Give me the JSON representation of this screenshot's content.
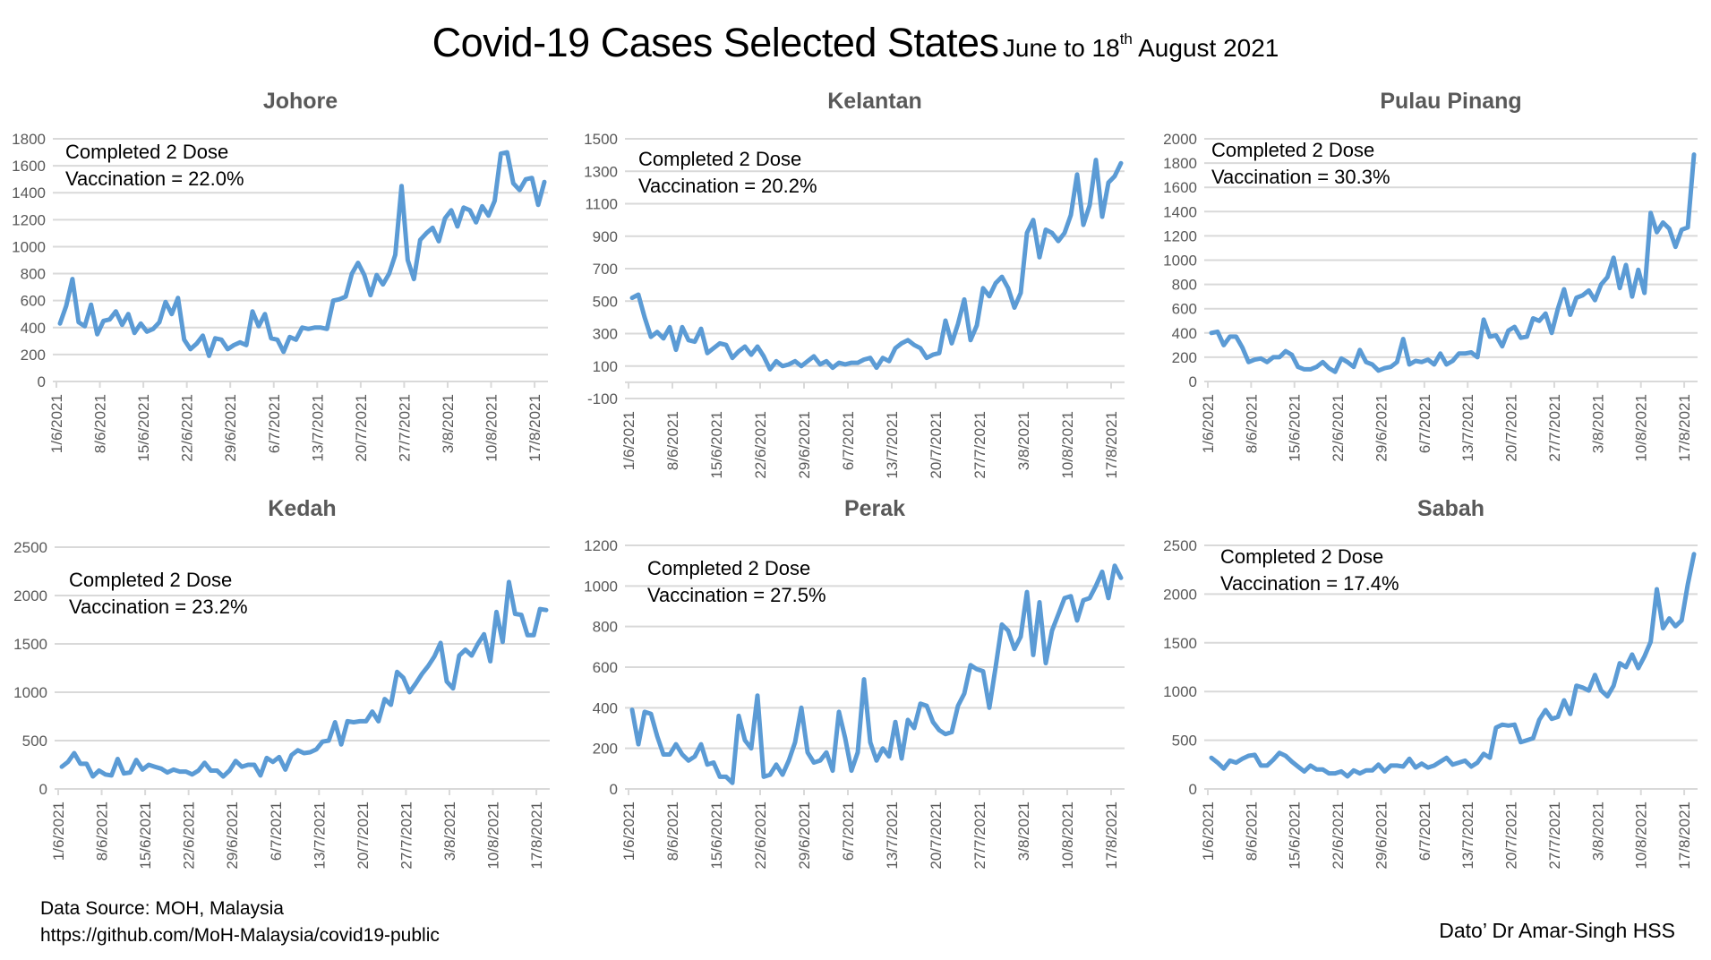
{
  "title": {
    "main": "Covid-19 Cases Selected States",
    "sub_prefix": "June to 18",
    "sub_sup": "th",
    "sub_suffix": " August 2021"
  },
  "footer": {
    "source_line1": "Data Source: MOH, Malaysia",
    "source_line2": "https://github.com/MoH-Malaysia/covid19-public",
    "author": "Dato’ Dr Amar-Singh HSS"
  },
  "chart_data": [
    {
      "type": "line",
      "title": "Johore",
      "annotation": [
        "Completed 2 Dose",
        "Vaccination = 22.0%"
      ],
      "vaccination_pct": 22.0,
      "xlabel": "",
      "ylabel": "",
      "x_start": "1/6/2021",
      "x_end": "18/8/2021",
      "x_tick_labels": [
        "1/6/2021",
        "8/6/2021",
        "15/6/2021",
        "22/6/2021",
        "29/6/2021",
        "6/7/2021",
        "13/7/2021",
        "20/7/2021",
        "27/7/2021",
        "3/8/2021",
        "10/8/2021",
        "17/8/2021"
      ],
      "ylim": [
        0,
        1800
      ],
      "y_ticks": [
        0,
        200,
        400,
        600,
        800,
        1000,
        1200,
        1400,
        1600,
        1800
      ],
      "grid": true,
      "series": [
        {
          "name": "Johore",
          "color": "#5b9bd5",
          "values": [
            430,
            560,
            760,
            440,
            410,
            570,
            350,
            450,
            460,
            520,
            420,
            500,
            360,
            430,
            370,
            390,
            440,
            590,
            500,
            620,
            310,
            240,
            280,
            340,
            190,
            320,
            310,
            240,
            270,
            290,
            270,
            520,
            410,
            500,
            320,
            310,
            220,
            330,
            310,
            400,
            390,
            400,
            400,
            390,
            600,
            610,
            630,
            800,
            880,
            790,
            640,
            790,
            720,
            800,
            940,
            1450,
            900,
            760,
            1050,
            1100,
            1140,
            1040,
            1210,
            1270,
            1150,
            1290,
            1270,
            1180,
            1300,
            1230,
            1340,
            1690,
            1700,
            1470,
            1420,
            1500,
            1510,
            1310,
            1480
          ]
        }
      ]
    },
    {
      "type": "line",
      "title": "Kelantan",
      "annotation": [
        "Completed 2 Dose",
        "Vaccination = 20.2%"
      ],
      "vaccination_pct": 20.2,
      "xlabel": "",
      "ylabel": "",
      "x_start": "1/6/2021",
      "x_end": "18/8/2021",
      "x_tick_labels": [
        "1/6/2021",
        "8/6/2021",
        "15/6/2021",
        "22/6/2021",
        "29/6/2021",
        "6/7/2021",
        "13/7/2021",
        "20/7/2021",
        "27/7/2021",
        "3/8/2021",
        "10/8/2021",
        "17/8/2021"
      ],
      "ylim": [
        -100,
        1500
      ],
      "y_ticks": [
        -100,
        100,
        300,
        500,
        700,
        900,
        1100,
        1300,
        1500
      ],
      "grid": true,
      "series": [
        {
          "name": "Kelantan",
          "color": "#5b9bd5",
          "values": [
            520,
            540,
            400,
            280,
            310,
            270,
            340,
            200,
            340,
            260,
            250,
            330,
            180,
            210,
            240,
            230,
            150,
            190,
            220,
            170,
            220,
            160,
            80,
            130,
            100,
            110,
            130,
            100,
            130,
            160,
            110,
            130,
            90,
            120,
            110,
            120,
            120,
            140,
            150,
            90,
            150,
            130,
            210,
            240,
            260,
            230,
            210,
            150,
            170,
            180,
            380,
            240,
            360,
            510,
            260,
            350,
            580,
            530,
            610,
            650,
            580,
            460,
            550,
            920,
            1000,
            770,
            940,
            920,
            870,
            920,
            1030,
            1280,
            970,
            1090,
            1370,
            1020,
            1230,
            1270,
            1350
          ]
        }
      ]
    },
    {
      "type": "line",
      "title": "Pulau Pinang",
      "annotation": [
        "Completed 2 Dose",
        "Vaccination = 30.3%"
      ],
      "vaccination_pct": 30.3,
      "xlabel": "",
      "ylabel": "",
      "x_start": "1/6/2021",
      "x_end": "18/8/2021",
      "x_tick_labels": [
        "1/6/2021",
        "8/6/2021",
        "15/6/2021",
        "22/6/2021",
        "29/6/2021",
        "6/7/2021",
        "13/7/2021",
        "20/7/2021",
        "27/7/2021",
        "3/8/2021",
        "10/8/2021",
        "17/8/2021"
      ],
      "ylim": [
        0,
        2000
      ],
      "y_ticks": [
        0,
        200,
        400,
        600,
        800,
        1000,
        1200,
        1400,
        1600,
        1800,
        2000
      ],
      "grid": true,
      "series": [
        {
          "name": "Pulau Pinang",
          "color": "#5b9bd5",
          "values": [
            400,
            410,
            300,
            370,
            370,
            280,
            160,
            180,
            190,
            160,
            200,
            200,
            250,
            220,
            120,
            100,
            100,
            120,
            160,
            110,
            80,
            190,
            160,
            120,
            260,
            160,
            140,
            90,
            110,
            120,
            160,
            350,
            140,
            170,
            160,
            180,
            140,
            230,
            140,
            170,
            230,
            230,
            240,
            200,
            510,
            370,
            380,
            290,
            420,
            450,
            360,
            370,
            520,
            500,
            560,
            400,
            600,
            760,
            550,
            690,
            710,
            750,
            670,
            800,
            860,
            1020,
            770,
            960,
            700,
            920,
            730,
            1390,
            1230,
            1310,
            1260,
            1110,
            1250,
            1270,
            1870
          ]
        }
      ]
    },
    {
      "type": "line",
      "title": "Kedah",
      "annotation": [
        "Completed 2 Dose",
        "Vaccination = 23.2%"
      ],
      "vaccination_pct": 23.2,
      "xlabel": "",
      "ylabel": "",
      "x_start": "1/6/2021",
      "x_end": "18/8/2021",
      "x_tick_labels": [
        "1/6/2021",
        "8/6/2021",
        "15/6/2021",
        "22/6/2021",
        "29/6/2021",
        "6/7/2021",
        "13/7/2021",
        "20/7/2021",
        "27/7/2021",
        "3/8/2021",
        "10/8/2021",
        "17/8/2021"
      ],
      "ylim": [
        0,
        2500
      ],
      "y_ticks": [
        0,
        500,
        1000,
        1500,
        2000,
        2500
      ],
      "grid": true,
      "series": [
        {
          "name": "Kedah",
          "color": "#5b9bd5",
          "values": [
            230,
            280,
            370,
            260,
            260,
            130,
            190,
            150,
            140,
            310,
            160,
            170,
            300,
            200,
            250,
            230,
            210,
            170,
            200,
            180,
            180,
            150,
            190,
            270,
            190,
            190,
            130,
            190,
            290,
            230,
            250,
            250,
            140,
            320,
            280,
            330,
            200,
            350,
            400,
            370,
            380,
            410,
            490,
            500,
            690,
            460,
            700,
            690,
            700,
            700,
            800,
            700,
            930,
            870,
            1210,
            1150,
            1000,
            1090,
            1190,
            1270,
            1370,
            1510,
            1110,
            1040,
            1380,
            1440,
            1380,
            1500,
            1600,
            1320,
            1830,
            1520,
            2140,
            1810,
            1800,
            1590,
            1590,
            1860,
            1850
          ]
        }
      ]
    },
    {
      "type": "line",
      "title": "Perak",
      "annotation": [
        "Completed 2 Dose",
        "Vaccination = 27.5%"
      ],
      "vaccination_pct": 27.5,
      "xlabel": "",
      "ylabel": "",
      "x_start": "1/6/2021",
      "x_end": "18/8/2021",
      "x_tick_labels": [
        "1/6/2021",
        "8/6/2021",
        "15/6/2021",
        "22/6/2021",
        "29/6/2021",
        "6/7/2021",
        "13/7/2021",
        "20/7/2021",
        "27/7/2021",
        "3/8/2021",
        "10/8/2021",
        "17/8/2021"
      ],
      "ylim": [
        0,
        1200
      ],
      "y_ticks": [
        0,
        200,
        400,
        600,
        800,
        1000,
        1200
      ],
      "grid": true,
      "series": [
        {
          "name": "Perak",
          "color": "#5b9bd5",
          "values": [
            390,
            220,
            380,
            370,
            260,
            170,
            170,
            220,
            170,
            140,
            160,
            220,
            120,
            130,
            60,
            60,
            30,
            360,
            240,
            200,
            460,
            60,
            70,
            120,
            70,
            140,
            230,
            400,
            180,
            130,
            140,
            180,
            90,
            380,
            250,
            90,
            180,
            540,
            230,
            140,
            200,
            160,
            330,
            150,
            340,
            300,
            420,
            410,
            330,
            290,
            270,
            280,
            410,
            470,
            610,
            590,
            580,
            400,
            600,
            810,
            780,
            690,
            750,
            970,
            660,
            920,
            620,
            780,
            860,
            940,
            950,
            830,
            930,
            940,
            1000,
            1070,
            940,
            1100,
            1040
          ]
        }
      ]
    },
    {
      "type": "line",
      "title": "Sabah",
      "annotation": [
        "Completed 2 Dose",
        "Vaccination = 17.4%"
      ],
      "vaccination_pct": 17.4,
      "xlabel": "",
      "ylabel": "",
      "x_start": "1/6/2021",
      "x_end": "18/8/2021",
      "x_tick_labels": [
        "1/6/2021",
        "8/6/2021",
        "15/6/2021",
        "22/6/2021",
        "29/6/2021",
        "6/7/2021",
        "13/7/2021",
        "20/7/2021",
        "27/7/2021",
        "3/8/2021",
        "10/8/2021",
        "17/8/2021"
      ],
      "ylim": [
        0,
        2500
      ],
      "y_ticks": [
        0,
        500,
        1000,
        1500,
        2000,
        2500
      ],
      "grid": true,
      "series": [
        {
          "name": "Sabah",
          "color": "#5b9bd5",
          "values": [
            320,
            270,
            210,
            290,
            270,
            310,
            340,
            350,
            240,
            240,
            300,
            370,
            340,
            280,
            230,
            180,
            240,
            200,
            200,
            160,
            160,
            180,
            130,
            190,
            160,
            190,
            190,
            250,
            180,
            240,
            240,
            230,
            310,
            220,
            260,
            220,
            240,
            280,
            320,
            250,
            270,
            290,
            230,
            270,
            360,
            320,
            630,
            660,
            650,
            660,
            480,
            500,
            520,
            710,
            810,
            720,
            740,
            910,
            770,
            1060,
            1040,
            1010,
            1170,
            1010,
            950,
            1060,
            1290,
            1250,
            1380,
            1240,
            1360,
            1510,
            2050,
            1650,
            1750,
            1670,
            1730,
            2100,
            2410
          ]
        }
      ]
    }
  ]
}
